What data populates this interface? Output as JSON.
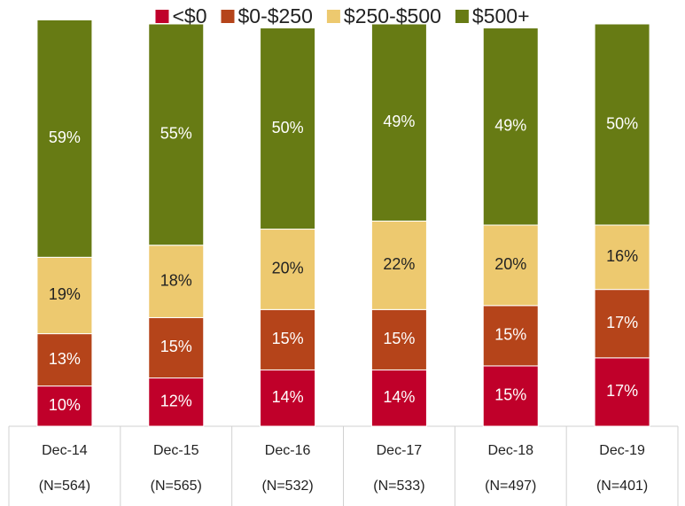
{
  "chart_data": {
    "type": "stacked_bar",
    "categories": [
      "Dec-14",
      "Dec-15",
      "Dec-16",
      "Dec-17",
      "Dec-18",
      "Dec-19"
    ],
    "sample_sizes": [
      "(N=564)",
      "(N=565)",
      "(N=532)",
      "(N=533)",
      "(N=497)",
      "(N=401)"
    ],
    "ylim": [
      0,
      100
    ],
    "series": [
      {
        "name": "<$0",
        "color": "#c0002a",
        "label_color": "#ffffff",
        "values": [
          10,
          12,
          14,
          14,
          15,
          17
        ],
        "value_labels": [
          "10%",
          "12%",
          "14%",
          "14%",
          "15%",
          "17%"
        ]
      },
      {
        "name": "$0-$250",
        "color": "#b5441a",
        "label_color": "#ffffff",
        "values": [
          13,
          15,
          15,
          15,
          15,
          17
        ],
        "value_labels": [
          "13%",
          "15%",
          "15%",
          "15%",
          "15%",
          "17%"
        ]
      },
      {
        "name": "$250-$500",
        "color": "#edc96f",
        "label_color": "#222222",
        "values": [
          19,
          18,
          20,
          22,
          20,
          16
        ],
        "value_labels": [
          "19%",
          "18%",
          "20%",
          "22%",
          "20%",
          "16%"
        ]
      },
      {
        "name": "$500+",
        "color": "#677b14",
        "label_color": "#ffffff",
        "values": [
          59,
          55,
          50,
          49,
          49,
          50
        ],
        "value_labels": [
          "59%",
          "55%",
          "50%",
          "49%",
          "49%",
          "50%"
        ]
      }
    ],
    "legend": "top"
  }
}
